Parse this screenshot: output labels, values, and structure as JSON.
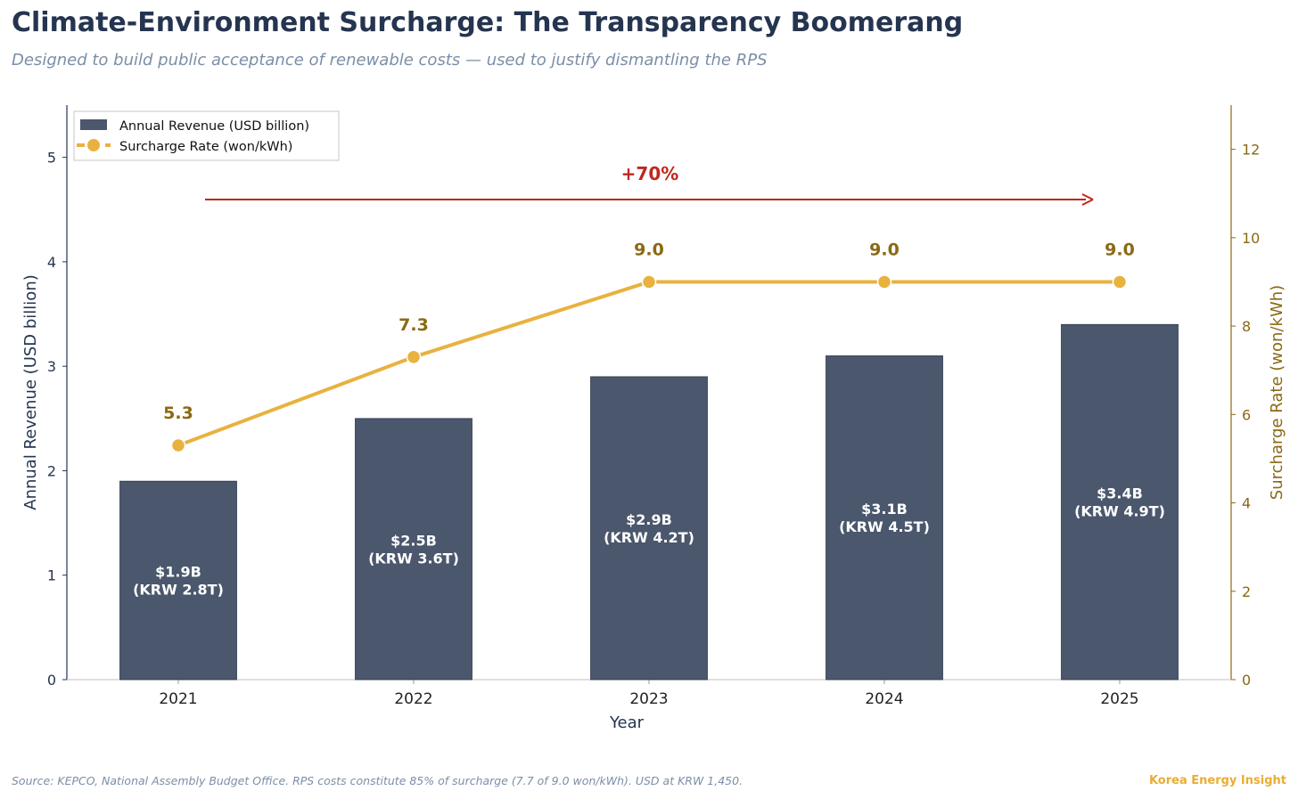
{
  "header": {
    "title": "Climate-Environment Surcharge: The Transparency Boomerang",
    "subtitle": "Designed to build public acceptance of renewable costs — used to justify dismantling the RPS"
  },
  "footer": {
    "source": "Source: KEPCO, National Assembly Budget Office. RPS costs constitute 85% of surcharge (7.7 of 9.0 won/kWh). USD at KRW 1,450.",
    "brand": "Korea Energy Insight"
  },
  "chart_data": {
    "type": "bar+line",
    "categories": [
      "2021",
      "2022",
      "2023",
      "2024",
      "2025"
    ],
    "xlabel": "Year",
    "series": [
      {
        "name": "Annual Revenue (USD billion)",
        "type": "bar",
        "axis": "left",
        "values": [
          1.9,
          2.5,
          2.9,
          3.1,
          3.4
        ],
        "labels": [
          [
            "$1.9B",
            "(KRW 2.8T)"
          ],
          [
            "$2.5B",
            "(KRW 3.6T)"
          ],
          [
            "$2.9B",
            "(KRW 4.2T)"
          ],
          [
            "$3.1B",
            "(KRW 4.5T)"
          ],
          [
            "$3.4B",
            "(KRW 4.9T)"
          ]
        ]
      },
      {
        "name": "Surcharge Rate (won/kWh)",
        "type": "line",
        "axis": "right",
        "values": [
          5.3,
          7.3,
          9.0,
          9.0,
          9.0
        ],
        "labels": [
          "5.3",
          "7.3",
          "9.0",
          "9.0",
          "9.0"
        ]
      }
    ],
    "y_left": {
      "label": "Annual Revenue (USD billion)",
      "range": [
        0,
        5.5
      ],
      "ticks": [
        "0",
        "1",
        "2",
        "3",
        "4",
        "5"
      ]
    },
    "y_right": {
      "label": "Surcharge Rate (won/kWh)",
      "range": [
        0,
        13
      ],
      "ticks": [
        "0",
        "2",
        "4",
        "6",
        "8",
        "10",
        "12"
      ]
    },
    "annotation": {
      "text": "+70%",
      "from": "2021",
      "to": "2025"
    },
    "legend": "top-left",
    "grid": false,
    "colors": {
      "bar": "#4a576c",
      "line": "#e8b23f",
      "line_label": "#8b6914",
      "annotation": "#c0281e",
      "right_axis": "#8b6914",
      "left_axis": "#253550"
    }
  }
}
